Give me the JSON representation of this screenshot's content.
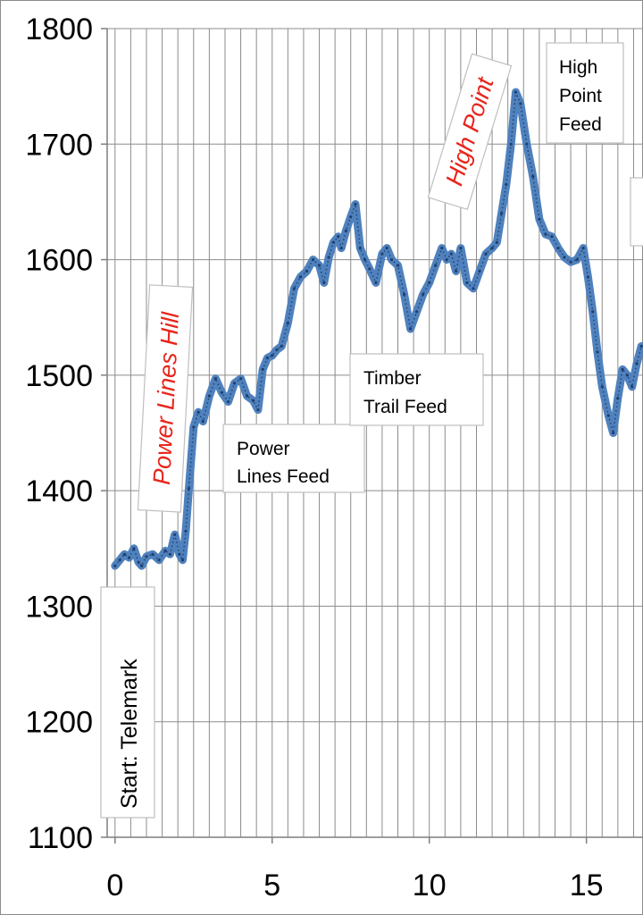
{
  "chart_data": {
    "type": "line",
    "title": "",
    "xlabel": "",
    "ylabel": "",
    "xlim": [
      -0.25,
      16.8
    ],
    "ylim": [
      1100,
      1800
    ],
    "x_ticks": [
      0,
      5,
      10,
      15
    ],
    "x_tick_labels": [
      "0",
      "5",
      "10",
      "15"
    ],
    "y_ticks": [
      1100,
      1200,
      1300,
      1400,
      1500,
      1600,
      1700,
      1800
    ],
    "y_tick_labels": [
      "1100",
      "1200",
      "1300",
      "1400",
      "1500",
      "1600",
      "1700",
      "1800"
    ],
    "grid": true,
    "line_color": "#4f81bd",
    "series": [
      {
        "name": "",
        "x": [
          0,
          0.15,
          0.3,
          0.45,
          0.6,
          0.75,
          0.85,
          1.0,
          1.2,
          1.4,
          1.6,
          1.75,
          1.9,
          2.05,
          2.15,
          2.25,
          2.35,
          2.5,
          2.65,
          2.8,
          3.0,
          3.2,
          3.4,
          3.6,
          3.8,
          4.0,
          4.2,
          4.4,
          4.55,
          4.7,
          4.85,
          5.0,
          5.15,
          5.3,
          5.5,
          5.7,
          5.9,
          6.1,
          6.3,
          6.5,
          6.65,
          6.8,
          6.95,
          7.1,
          7.2,
          7.35,
          7.5,
          7.65,
          7.8,
          7.95,
          8.1,
          8.3,
          8.5,
          8.65,
          8.8,
          9.0,
          9.2,
          9.4,
          9.6,
          9.8,
          10.0,
          10.2,
          10.4,
          10.55,
          10.7,
          10.85,
          11.0,
          11.2,
          11.4,
          11.6,
          11.8,
          12.0,
          12.15,
          12.3,
          12.45,
          12.6,
          12.75,
          12.9,
          13.1,
          13.3,
          13.5,
          13.7,
          13.9,
          14.1,
          14.3,
          14.5,
          14.7,
          14.9,
          15.05,
          15.2,
          15.35,
          15.5,
          15.7,
          15.85,
          16.0,
          16.15,
          16.3,
          16.45,
          16.6,
          16.75
        ],
        "values": [
          1335,
          1340,
          1345,
          1342,
          1350,
          1338,
          1335,
          1343,
          1345,
          1340,
          1348,
          1345,
          1362,
          1345,
          1340,
          1365,
          1402,
          1455,
          1468,
          1460,
          1482,
          1497,
          1485,
          1477,
          1493,
          1497,
          1482,
          1478,
          1470,
          1505,
          1515,
          1517,
          1522,
          1525,
          1545,
          1575,
          1585,
          1590,
          1600,
          1595,
          1580,
          1602,
          1615,
          1620,
          1610,
          1625,
          1637,
          1648,
          1610,
          1600,
          1592,
          1580,
          1605,
          1610,
          1600,
          1595,
          1570,
          1540,
          1555,
          1570,
          1580,
          1595,
          1610,
          1600,
          1605,
          1590,
          1610,
          1580,
          1575,
          1590,
          1605,
          1610,
          1615,
          1640,
          1665,
          1700,
          1745,
          1735,
          1700,
          1672,
          1635,
          1622,
          1620,
          1610,
          1602,
          1598,
          1600,
          1610,
          1585,
          1555,
          1520,
          1490,
          1465,
          1450,
          1480,
          1505,
          1500,
          1490,
          1510,
          1525
        ]
      }
    ],
    "annotations": [
      {
        "text": "Start: Telemark",
        "x": 0.1,
        "y": 1255,
        "style": "box"
      },
      {
        "text": "Power Lines Hill",
        "x": 1.5,
        "y": 1480,
        "style": "red"
      },
      {
        "text": "Power Lines Feed",
        "x": 5.0,
        "y": 1420,
        "style": "box"
      },
      {
        "text": "Timber Trail Feed",
        "x": 9.0,
        "y": 1490,
        "style": "box"
      },
      {
        "text": "High Point",
        "x": 11.3,
        "y": 1710,
        "style": "red"
      },
      {
        "text": "High Point Feed",
        "x": 15.2,
        "y": 1730,
        "style": "box"
      }
    ]
  }
}
